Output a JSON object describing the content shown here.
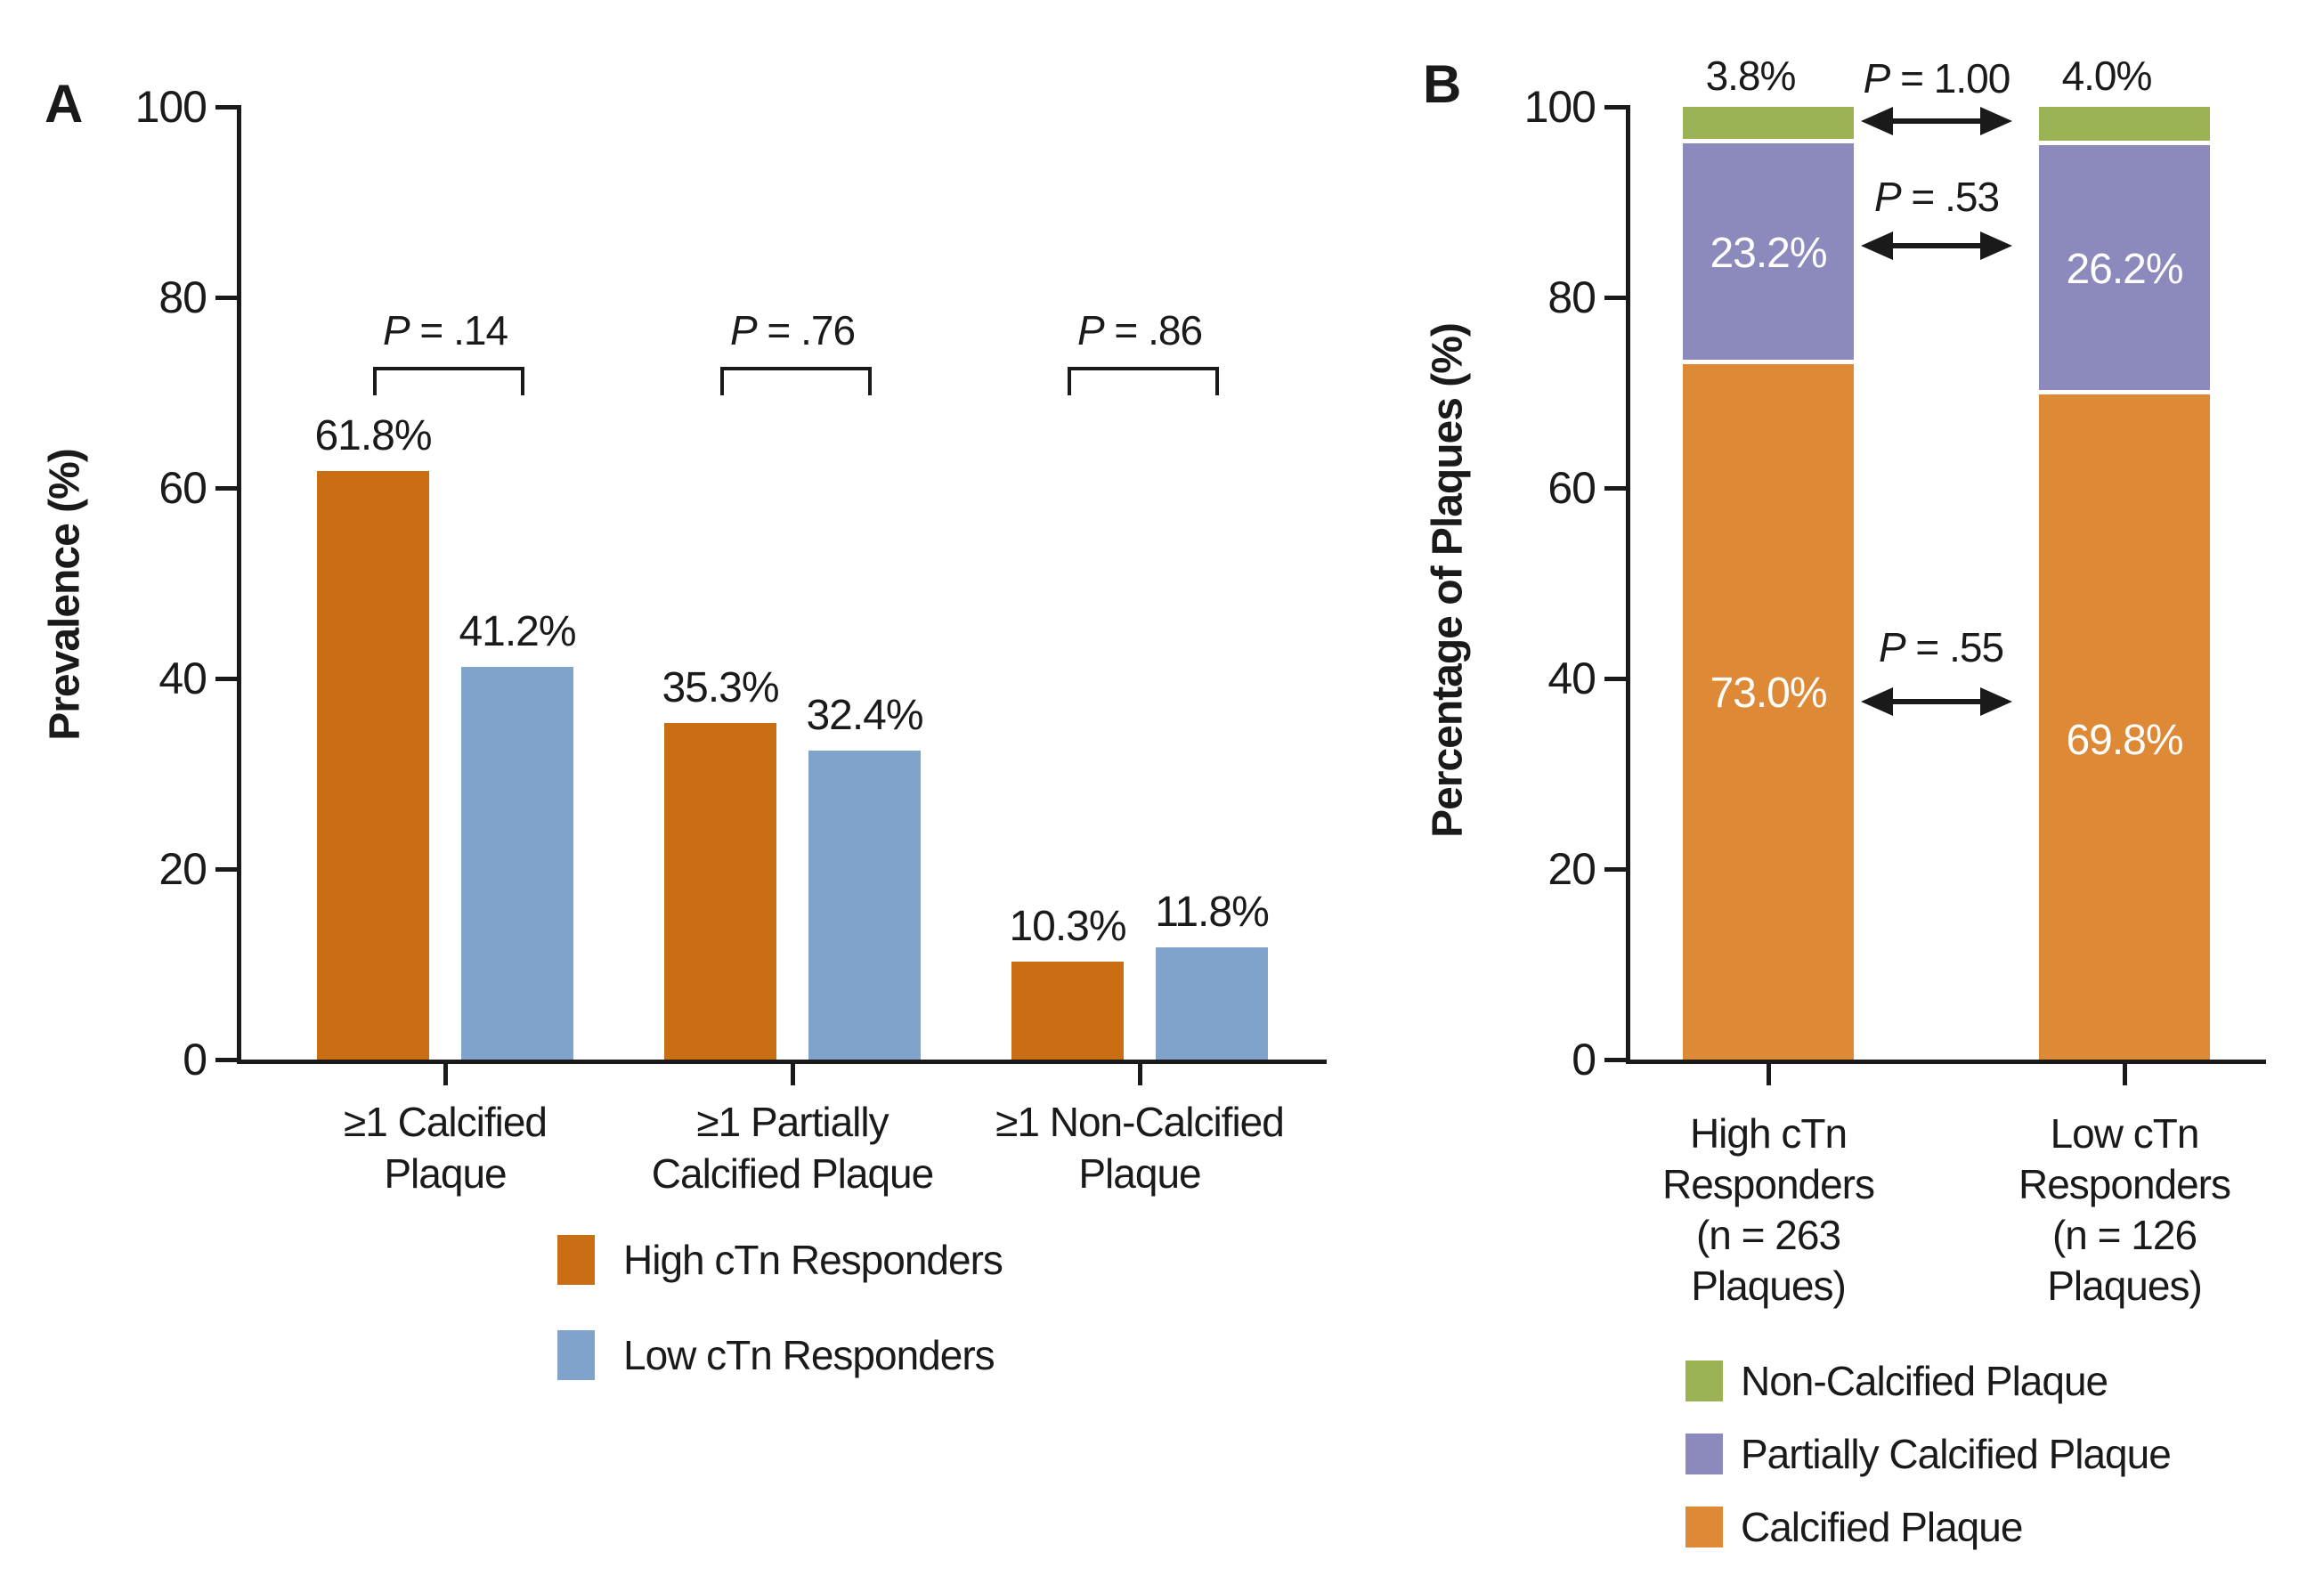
{
  "figure": {
    "panels": {
      "a": {
        "letter": "A",
        "ylabel": "Prevalence (%)"
      },
      "b": {
        "letter": "B",
        "ylabel": "Percentage of Plaques (%)"
      }
    }
  },
  "colors": {
    "text": "#1a1a1a",
    "axis": "#1a1a1a",
    "high_ctn": "#C96E12",
    "low_ctn": "#80A3CB",
    "calcified": "#DE8936",
    "partially_calcified": "#8C89BC",
    "non_calcified": "#9AB254",
    "inside_label": "#ffffff",
    "background": "#ffffff"
  },
  "chart_data": [
    {
      "type": "bar",
      "panel": "A",
      "ylabel": "Prevalence (%)",
      "ylim": [
        0,
        100
      ],
      "yticks": [
        0,
        20,
        40,
        60,
        80,
        100
      ],
      "grid": false,
      "categories": [
        "≥1 Calcified Plaque",
        "≥1 Partially Calcified Plaque",
        "≥1 Non-Calcified Plaque"
      ],
      "category_lines": [
        [
          "≥1 Calcified",
          "Plaque"
        ],
        [
          "≥1 Partially",
          "Calcified Plaque"
        ],
        [
          "≥1 Non-Calcified",
          "Plaque"
        ]
      ],
      "series": [
        {
          "name": "High cTn Responders",
          "color_key": "high_ctn",
          "values": [
            61.8,
            35.3,
            10.3
          ]
        },
        {
          "name": "Low cTn Responders",
          "color_key": "low_ctn",
          "values": [
            41.2,
            32.4,
            11.8
          ]
        }
      ],
      "p_symbol": "P",
      "p_values": [
        ".14",
        ".76",
        ".86"
      ],
      "legend_position": "bottom",
      "legend": [
        {
          "label": "High cTn Responders",
          "color_key": "high_ctn"
        },
        {
          "label": "Low cTn Responders",
          "color_key": "low_ctn"
        }
      ]
    },
    {
      "type": "stacked-bar",
      "panel": "B",
      "ylabel": "Percentage of Plaques (%)",
      "ylim": [
        0,
        100
      ],
      "yticks": [
        0,
        20,
        40,
        60,
        80,
        100
      ],
      "grid": false,
      "categories": [
        "High cTn Responders (n = 263 Plaques)",
        "Low cTn Responders (n = 126 Plaques)"
      ],
      "category_lines": [
        [
          "High cTn",
          "Responders",
          "(n = 263",
          "Plaques)"
        ],
        [
          "Low cTn",
          "Responders",
          "(n = 126",
          "Plaques)"
        ]
      ],
      "series": [
        {
          "name": "Calcified Plaque",
          "color_key": "calcified",
          "values": [
            73.0,
            69.8
          ]
        },
        {
          "name": "Partially Calcified Plaque",
          "color_key": "partially_calcified",
          "values": [
            23.2,
            26.2
          ]
        },
        {
          "name": "Non-Calcified Plaque",
          "color_key": "non_calcified",
          "values": [
            3.8,
            4.0
          ]
        }
      ],
      "p_symbol": "P",
      "p_values": {
        "non_calcified": "1.00",
        "partially_calcified": ".53",
        "calcified": ".55"
      },
      "legend_position": "bottom",
      "legend": [
        {
          "label": "Non-Calcified Plaque",
          "color_key": "non_calcified"
        },
        {
          "label": "Partially Calcified Plaque",
          "color_key": "partially_calcified"
        },
        {
          "label": "Calcified Plaque",
          "color_key": "calcified"
        }
      ]
    }
  ]
}
